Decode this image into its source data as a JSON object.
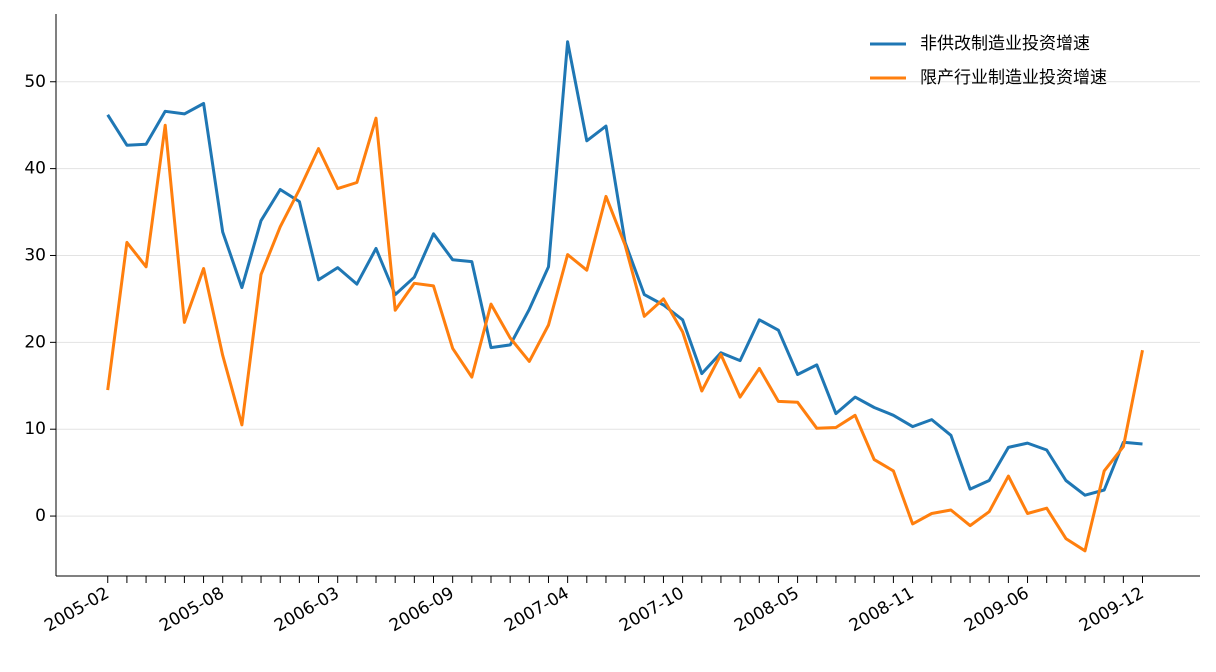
{
  "chart_data": {
    "type": "line",
    "categories": [
      "2005-02",
      null,
      null,
      null,
      null,
      null,
      "2005-08",
      null,
      null,
      null,
      null,
      null,
      "2006-03",
      null,
      null,
      null,
      null,
      null,
      "2006-09",
      null,
      null,
      null,
      null,
      null,
      "2007-04",
      null,
      null,
      null,
      null,
      null,
      "2007-10",
      null,
      null,
      null,
      null,
      null,
      "2008-05",
      null,
      null,
      null,
      null,
      null,
      "2008-11",
      null,
      null,
      null,
      null,
      null,
      "2009-06",
      null,
      null,
      null,
      null,
      null,
      "2009-12"
    ],
    "series": [
      {
        "name": "非供改制造业投资增速",
        "color": "#1f77b4",
        "values": [
          46.2,
          42.7,
          42.8,
          46.6,
          46.3,
          47.5,
          32.7,
          26.3,
          34.0,
          37.6,
          36.2,
          27.2,
          28.6,
          26.7,
          30.8,
          25.5,
          27.5,
          32.5,
          29.5,
          29.3,
          19.4,
          19.7,
          23.8,
          28.7,
          54.6,
          43.2,
          44.9,
          31.5,
          25.5,
          24.3,
          22.6,
          16.4,
          18.8,
          17.9,
          22.6,
          21.4,
          16.3,
          17.4,
          11.8,
          13.7,
          12.5,
          11.6,
          10.3,
          11.1,
          9.3,
          3.1,
          4.1,
          7.9,
          8.4,
          7.6,
          4.1,
          2.4,
          3.0,
          8.5,
          8.3
        ]
      },
      {
        "name": "限产行业制造业投资增速",
        "color": "#ff7f0e",
        "values": [
          14.5,
          31.5,
          28.7,
          45.0,
          22.3,
          28.5,
          18.5,
          10.5,
          27.8,
          33.3,
          37.6,
          42.3,
          37.7,
          38.4,
          45.8,
          23.7,
          26.8,
          26.5,
          19.3,
          16.0,
          24.4,
          20.5,
          17.8,
          22.0,
          30.1,
          28.3,
          36.8,
          31.2,
          23.0,
          25.0,
          21.2,
          14.4,
          18.6,
          13.7,
          17.0,
          13.2,
          13.1,
          10.1,
          10.2,
          11.6,
          6.5,
          5.2,
          -0.9,
          0.3,
          0.7,
          -1.1,
          0.5,
          4.6,
          0.3,
          0.9,
          -2.6,
          -4.0,
          5.2,
          8.0,
          19.1
        ]
      }
    ],
    "ylim": [
      -6.9,
      57.8
    ],
    "yticks": [
      0,
      10,
      20,
      30,
      40,
      50
    ],
    "grid": true,
    "legend": "upper right"
  }
}
